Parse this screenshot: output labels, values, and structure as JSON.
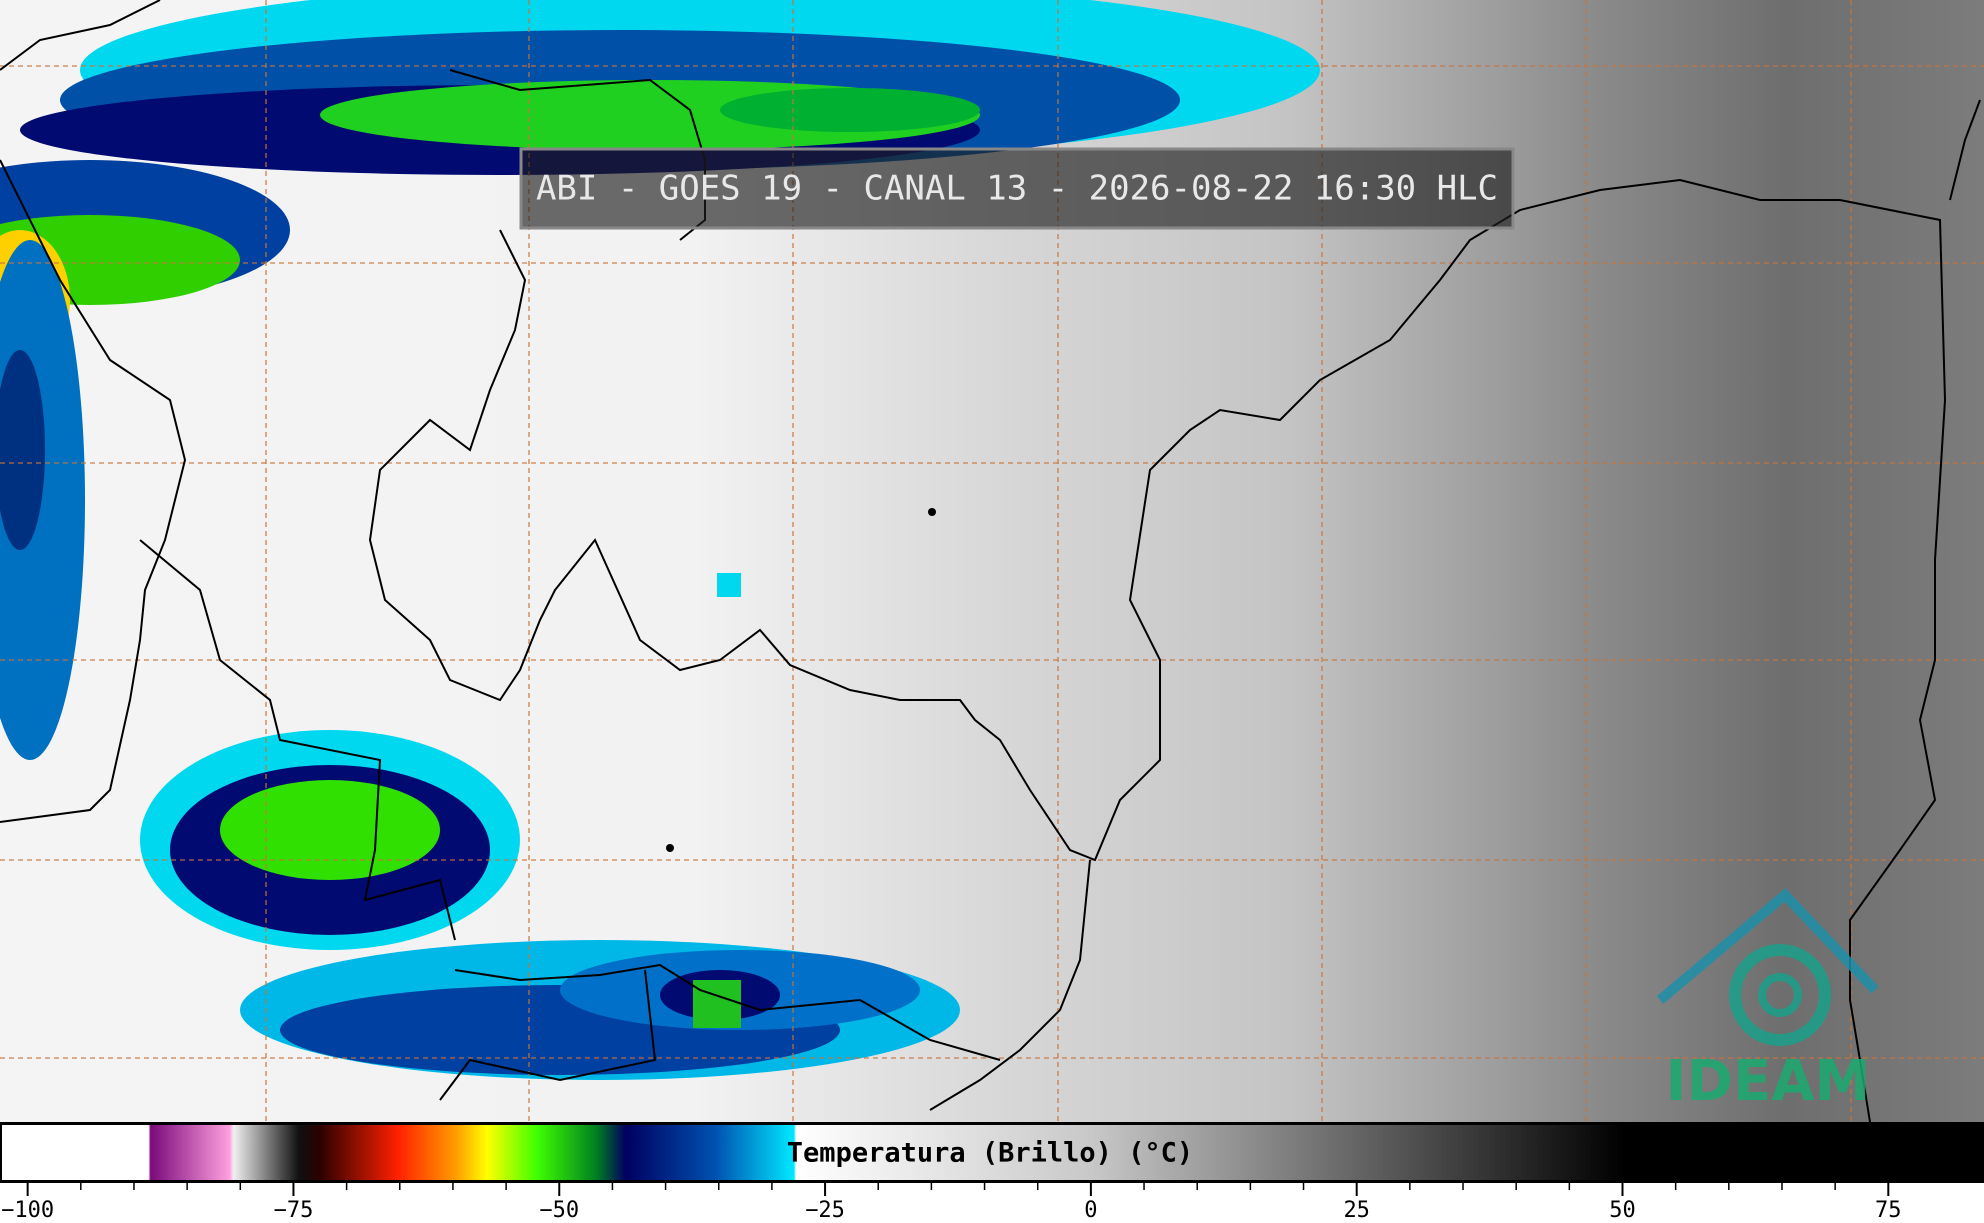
{
  "title": "ABI - GOES 19 - CANAL 13 - 2026-08-22 16:30 HLC",
  "logo": "IDEAM",
  "colorbar": {
    "label": "Temperatura (Brillo) (°C)",
    "range": [
      -102.6,
      84.0
    ],
    "ticks": [
      {
        "value": -100,
        "label": "−100"
      },
      {
        "value": -75,
        "label": "−75"
      },
      {
        "value": -50,
        "label": "−50"
      },
      {
        "value": -25,
        "label": "−25"
      },
      0,
      25,
      50,
      75
    ]
  }
}
